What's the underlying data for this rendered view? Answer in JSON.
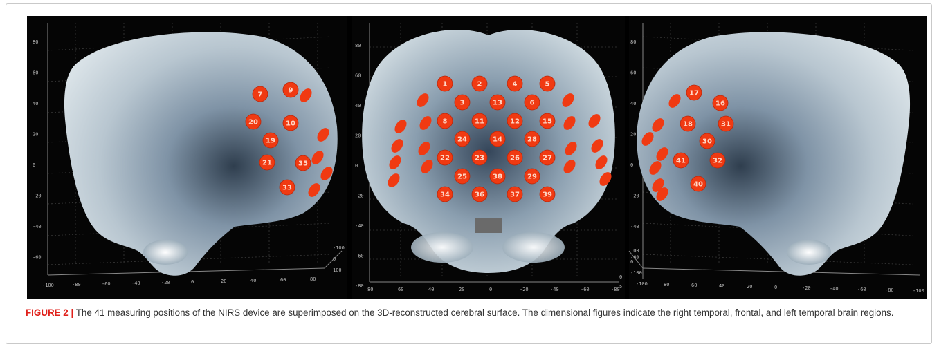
{
  "figure": {
    "panels": [
      {
        "name": "right-temporal",
        "y_ticks": [
          "80",
          "60",
          "40",
          "20",
          "0",
          "-20",
          "-40",
          "-60"
        ],
        "x_ticks": [
          "-100",
          "-80",
          "-60",
          "-40",
          "-20",
          "0",
          "20",
          "40",
          "60",
          "80"
        ],
        "z_ticks": [
          "-100",
          "0",
          "100"
        ],
        "channels": [
          "7",
          "9",
          "20",
          "10",
          "19",
          "21",
          "35",
          "33"
        ]
      },
      {
        "name": "frontal",
        "y_ticks": [
          "80",
          "60",
          "40",
          "20",
          "0",
          "-20",
          "-40",
          "-60",
          "-80"
        ],
        "x_ticks": [
          "80",
          "60",
          "40",
          "20",
          "0",
          "-20",
          "-40",
          "-60",
          "-80"
        ],
        "z_ticks": [
          "0",
          "5"
        ],
        "channels": [
          "1",
          "2",
          "4",
          "5",
          "3",
          "13",
          "6",
          "8",
          "11",
          "12",
          "15",
          "24",
          "14",
          "28",
          "22",
          "23",
          "26",
          "27",
          "25",
          "38",
          "29",
          "34",
          "36",
          "37",
          "39"
        ]
      },
      {
        "name": "left-temporal",
        "y_ticks": [
          "80",
          "60",
          "40",
          "20",
          "0",
          "-20",
          "-40",
          "-60"
        ],
        "x_ticks": [
          "-100",
          "80",
          "60",
          "40",
          "20",
          "0",
          "-20",
          "-40",
          "-60",
          "-80",
          "-100"
        ],
        "z_ticks": [
          "100",
          "0",
          "-100"
        ],
        "channels": [
          "17",
          "16",
          "18",
          "31",
          "30",
          "41",
          "32",
          "40"
        ]
      }
    ]
  },
  "caption": {
    "label": "FIGURE 2",
    "separator": "|",
    "text": "The 41 measuring positions of the NIRS device are superimposed on the 3D-reconstructed cerebral surface. The dimensional figures indicate the right temporal, frontal, and left temporal brain regions."
  }
}
